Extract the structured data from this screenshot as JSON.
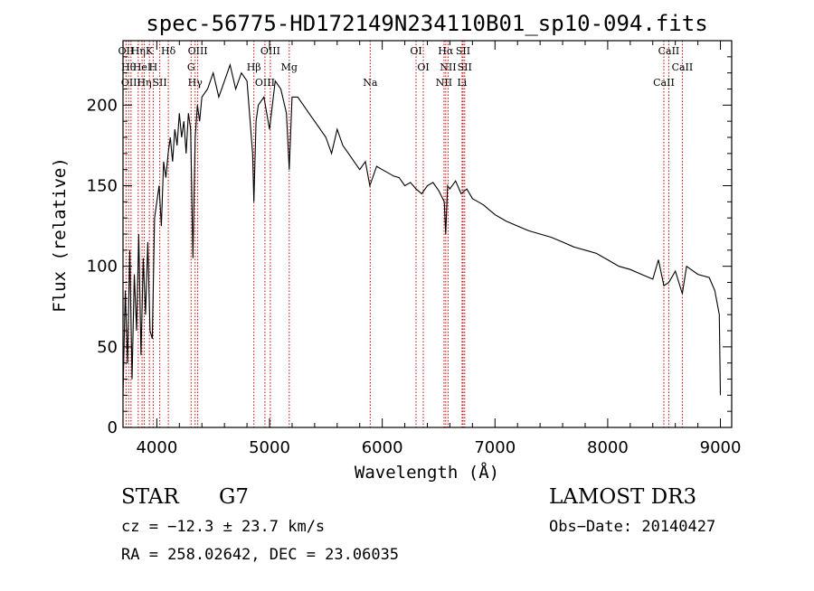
{
  "chart_data": {
    "type": "line",
    "title": "spec-56775-HD172149N234110B01_sp10-094.fits",
    "xlabel": "Wavelength (Å)",
    "ylabel": "Flux (relative)",
    "xlim": [
      3700,
      9100
    ],
    "ylim": [
      0,
      240
    ],
    "xticks": [
      4000,
      5000,
      6000,
      7000,
      8000,
      9000
    ],
    "yticks": [
      0,
      50,
      100,
      150,
      200
    ],
    "series": [
      {
        "name": "flux",
        "x": [
          3700,
          3720,
          3740,
          3760,
          3780,
          3800,
          3820,
          3840,
          3860,
          3880,
          3900,
          3920,
          3940,
          3960,
          3980,
          4000,
          4020,
          4040,
          4060,
          4080,
          4100,
          4120,
          4140,
          4160,
          4180,
          4200,
          4220,
          4240,
          4260,
          4280,
          4300,
          4320,
          4340,
          4360,
          4380,
          4400,
          4450,
          4500,
          4550,
          4600,
          4650,
          4700,
          4750,
          4800,
          4850,
          4861,
          4880,
          4900,
          4950,
          5000,
          5050,
          5100,
          5150,
          5175,
          5200,
          5250,
          5300,
          5350,
          5400,
          5450,
          5500,
          5550,
          5600,
          5650,
          5700,
          5750,
          5800,
          5850,
          5890,
          5950,
          6000,
          6050,
          6100,
          6150,
          6200,
          6250,
          6300,
          6350,
          6400,
          6450,
          6500,
          6550,
          6563,
          6580,
          6600,
          6650,
          6700,
          6750,
          6800,
          6850,
          6900,
          6950,
          7000,
          7100,
          7200,
          7300,
          7400,
          7500,
          7600,
          7700,
          7800,
          7900,
          8000,
          8100,
          8200,
          8300,
          8400,
          8450,
          8498,
          8542,
          8600,
          8662,
          8700,
          8800,
          8900,
          8950,
          8990,
          9000
        ],
        "y": [
          20,
          85,
          40,
          110,
          30,
          95,
          60,
          120,
          45,
          105,
          70,
          115,
          60,
          55,
          130,
          140,
          150,
          125,
          165,
          155,
          170,
          180,
          165,
          185,
          175,
          195,
          180,
          190,
          170,
          195,
          185,
          105,
          180,
          200,
          190,
          205,
          210,
          220,
          205,
          215,
          225,
          210,
          220,
          215,
          170,
          140,
          190,
          200,
          205,
          185,
          215,
          210,
          195,
          160,
          205,
          205,
          200,
          195,
          190,
          185,
          180,
          170,
          185,
          175,
          170,
          165,
          160,
          165,
          150,
          162,
          160,
          158,
          156,
          155,
          150,
          152,
          148,
          145,
          150,
          152,
          147,
          140,
          120,
          150,
          148,
          153,
          145,
          148,
          142,
          140,
          138,
          135,
          132,
          128,
          125,
          122,
          120,
          118,
          115,
          112,
          110,
          108,
          104,
          100,
          98,
          95,
          92,
          104,
          88,
          90,
          97,
          83,
          100,
          95,
          93,
          85,
          70,
          20
        ]
      }
    ],
    "line_markers": [
      {
        "wavelength": 3727,
        "label": "OII"
      },
      {
        "wavelength": 3750,
        "label": "Hθ"
      },
      {
        "wavelength": 3771,
        "label": "OIII"
      },
      {
        "wavelength": 3835,
        "label": "Hη"
      },
      {
        "wavelength": 3869,
        "label": "HeI"
      },
      {
        "wavelength": 3889,
        "label": "Hη"
      },
      {
        "wavelength": 3934,
        "label": "K"
      },
      {
        "wavelength": 3968,
        "label": "H"
      },
      {
        "wavelength": 4026,
        "label": "SII"
      },
      {
        "wavelength": 4102,
        "label": "Hδ"
      },
      {
        "wavelength": 4304,
        "label": "G"
      },
      {
        "wavelength": 4340,
        "label": "Hγ"
      },
      {
        "wavelength": 4363,
        "label": "OIII"
      },
      {
        "wavelength": 4861,
        "label": "Hβ"
      },
      {
        "wavelength": 4959,
        "label": "OIII"
      },
      {
        "wavelength": 5007,
        "label": "OIII"
      },
      {
        "wavelength": 5175,
        "label": "Mg"
      },
      {
        "wavelength": 5893,
        "label": "Na"
      },
      {
        "wavelength": 6300,
        "label": "OI"
      },
      {
        "wavelength": 6364,
        "label": "OI"
      },
      {
        "wavelength": 6548,
        "label": "NII"
      },
      {
        "wavelength": 6563,
        "label": "Hα"
      },
      {
        "wavelength": 6584,
        "label": "NII"
      },
      {
        "wavelength": 6708,
        "label": "Li"
      },
      {
        "wavelength": 6717,
        "label": "SII"
      },
      {
        "wavelength": 6731,
        "label": "SII"
      },
      {
        "wavelength": 8498,
        "label": "CaII"
      },
      {
        "wavelength": 8542,
        "label": "CaII"
      },
      {
        "wavelength": 8662,
        "label": "CaII"
      }
    ]
  },
  "footer": {
    "object_class": "STAR",
    "subclass": "G7",
    "survey": "LAMOST DR3",
    "cz": "cz = −12.3 ± 23.7 km/s",
    "obs_date": "Obs−Date: 20140427",
    "coords": "RA = 258.02642, DEC =  23.06035"
  },
  "colors": {
    "axes": "#000000",
    "spectrum": "#000000",
    "marker_line": "#cc0000"
  }
}
